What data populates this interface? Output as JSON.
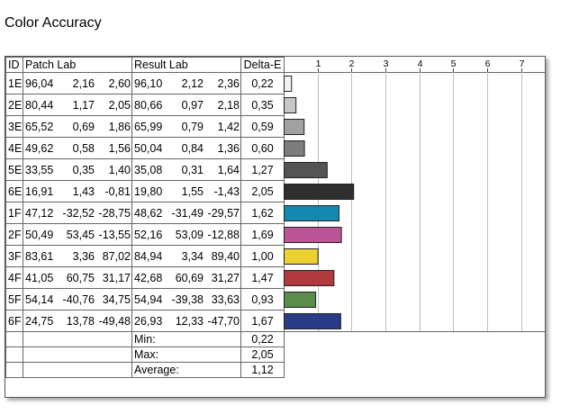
{
  "title": "Color Accuracy",
  "headers": {
    "id": "ID",
    "patch": "Patch Lab",
    "result": "Result Lab",
    "delta": "Delta-E"
  },
  "chart_data": {
    "type": "bar",
    "orientation": "horizontal",
    "xlim": [
      0,
      7.7
    ],
    "ticks": [
      "1",
      "2",
      "3",
      "4",
      "5",
      "6",
      "7"
    ],
    "tick_values": [
      1,
      2,
      3,
      4,
      5,
      6,
      7
    ],
    "grid": true,
    "rows": [
      {
        "id": "1E",
        "patch": [
          "96,04",
          "2,16",
          "2,60"
        ],
        "result": [
          "96,10",
          "2,12",
          "2,36"
        ],
        "delta": "0,22",
        "value": 0.22,
        "color": "#f2f2f2"
      },
      {
        "id": "2E",
        "patch": [
          "80,44",
          "1,17",
          "2,05"
        ],
        "result": [
          "80,66",
          "0,97",
          "2,18"
        ],
        "delta": "0,35",
        "value": 0.35,
        "color": "#c7c7c7"
      },
      {
        "id": "3E",
        "patch": [
          "65,52",
          "0,69",
          "1,86"
        ],
        "result": [
          "65,99",
          "0,79",
          "1,42"
        ],
        "delta": "0,59",
        "value": 0.59,
        "color": "#a1a1a1"
      },
      {
        "id": "4E",
        "patch": [
          "49,62",
          "0,58",
          "1,56"
        ],
        "result": [
          "50,04",
          "0,84",
          "1,36"
        ],
        "delta": "0,60",
        "value": 0.6,
        "color": "#7d7d7d"
      },
      {
        "id": "5E",
        "patch": [
          "33,55",
          "0,35",
          "1,40"
        ],
        "result": [
          "35,08",
          "0,31",
          "1,64"
        ],
        "delta": "1,27",
        "value": 1.27,
        "color": "#545454"
      },
      {
        "id": "6E",
        "patch": [
          "16,91",
          "1,43",
          "-0,81"
        ],
        "result": [
          "19,80",
          "1,55",
          "-1,43"
        ],
        "delta": "2,05",
        "value": 2.05,
        "color": "#2f2f2f"
      },
      {
        "id": "1F",
        "patch": [
          "47,12",
          "-32,52",
          "-28,75"
        ],
        "result": [
          "48,62",
          "-31,49",
          "-29,57"
        ],
        "delta": "1,62",
        "value": 1.62,
        "color": "#1389b0"
      },
      {
        "id": "2F",
        "patch": [
          "50,49",
          "53,45",
          "-13,55"
        ],
        "result": [
          "52,16",
          "53,09",
          "-12,88"
        ],
        "delta": "1,69",
        "value": 1.69,
        "color": "#bb5595"
      },
      {
        "id": "3F",
        "patch": [
          "83,61",
          "3,36",
          "87,02"
        ],
        "result": [
          "84,94",
          "3,34",
          "89,40"
        ],
        "delta": "1,00",
        "value": 1.0,
        "color": "#ecd033"
      },
      {
        "id": "4F",
        "patch": [
          "41,05",
          "60,75",
          "31,17"
        ],
        "result": [
          "42,68",
          "60,69",
          "31,27"
        ],
        "delta": "1,47",
        "value": 1.47,
        "color": "#b23a3f"
      },
      {
        "id": "5F",
        "patch": [
          "54,14",
          "-40,76",
          "34,75"
        ],
        "result": [
          "54,94",
          "-39,38",
          "33,63"
        ],
        "delta": "0,93",
        "value": 0.93,
        "color": "#5a8c4c"
      },
      {
        "id": "6F",
        "patch": [
          "24,75",
          "13,78",
          "-49,48"
        ],
        "result": [
          "26,93",
          "12,33",
          "-47,70"
        ],
        "delta": "1,67",
        "value": 1.67,
        "color": "#2a3b87"
      }
    ]
  },
  "summary": [
    {
      "label": "Min:",
      "value": "0,22"
    },
    {
      "label": "Max:",
      "value": "2,05"
    },
    {
      "label": "Average:",
      "value": "1,12"
    }
  ]
}
